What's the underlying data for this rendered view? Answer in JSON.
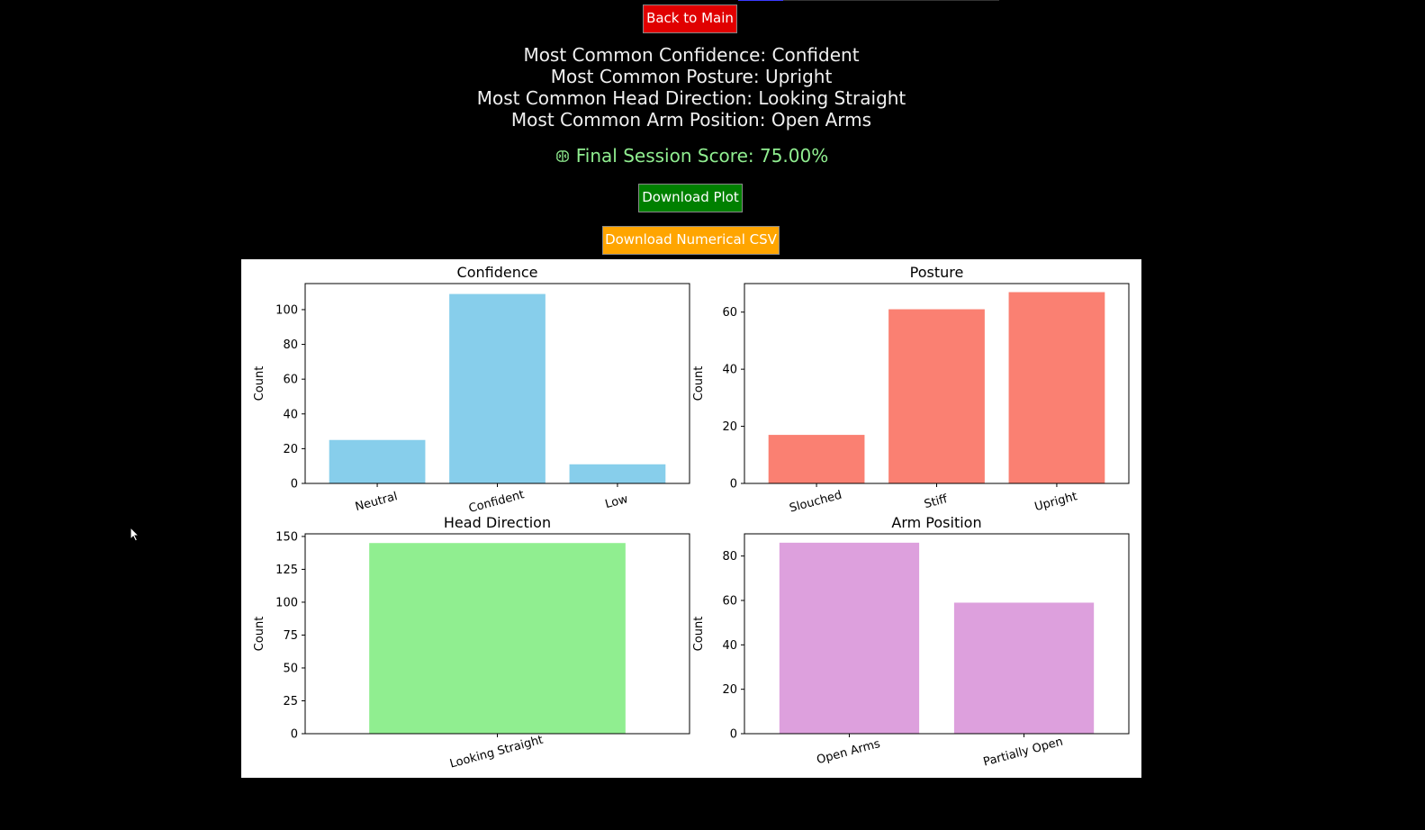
{
  "buttons": {
    "back": "Back to Main",
    "download_plot": "Download Plot",
    "download_csv": "Download Numerical CSV"
  },
  "summary": [
    {
      "label": "Most Common Confidence:",
      "value": "Confident"
    },
    {
      "label": "Most Common Posture:",
      "value": "Upright"
    },
    {
      "label": "Most Common Head Direction:",
      "value": "Looking Straight"
    },
    {
      "label": "Most Common Arm Position:",
      "value": "Open Arms"
    }
  ],
  "score": {
    "label": "Final Session Score:",
    "value": "75.00%",
    "icon": "brain-icon",
    "color": "#90ee90"
  },
  "colors": {
    "back": "#e00000",
    "download_plot": "#008000",
    "download_csv": "#ffa500"
  },
  "chart_data": [
    {
      "type": "bar",
      "title": "Confidence",
      "ylabel": "Count",
      "categories": [
        "Neutral",
        "Confident",
        "Low"
      ],
      "values": [
        25,
        109,
        11
      ],
      "ylim": [
        0,
        115
      ],
      "yticks": [
        0,
        20,
        40,
        60,
        80,
        100
      ],
      "color": "#87ceeb"
    },
    {
      "type": "bar",
      "title": "Posture",
      "ylabel": "Count",
      "categories": [
        "Slouched",
        "Stiff",
        "Upright"
      ],
      "values": [
        17,
        61,
        67
      ],
      "ylim": [
        0,
        70
      ],
      "yticks": [
        0,
        20,
        40,
        60
      ],
      "color": "#fa8072"
    },
    {
      "type": "bar",
      "title": "Head Direction",
      "ylabel": "Count",
      "categories": [
        "Looking Straight"
      ],
      "values": [
        145
      ],
      "ylim": [
        0,
        152
      ],
      "yticks": [
        0,
        25,
        50,
        75,
        100,
        125,
        150
      ],
      "color": "#90ee90"
    },
    {
      "type": "bar",
      "title": "Arm Position",
      "ylabel": "Count",
      "categories": [
        "Open Arms",
        "Partially Open"
      ],
      "values": [
        86,
        59
      ],
      "ylim": [
        0,
        90
      ],
      "yticks": [
        0,
        20,
        40,
        60,
        80
      ],
      "color": "#dda0dd"
    }
  ]
}
